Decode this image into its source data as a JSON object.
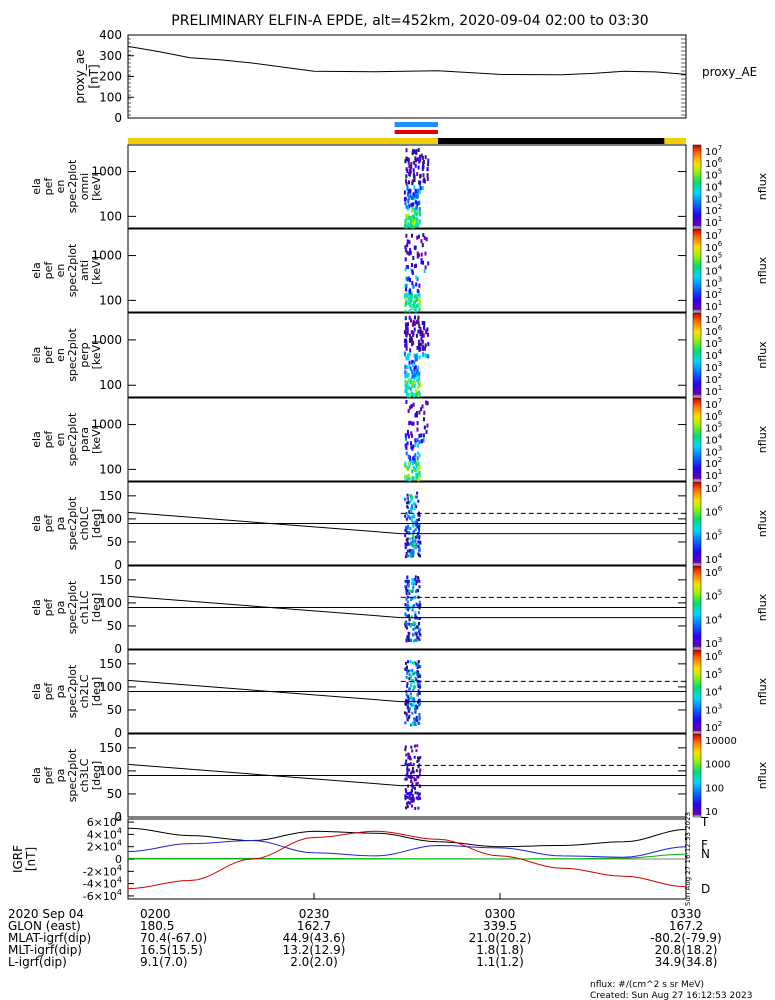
{
  "title": "PRELIMINARY ELFIN-A EPDE, alt=452km, 2020-09-04 02:00 to 03:30",
  "chart_data": [
    {
      "type": "line",
      "name": "proxy_ae",
      "ylabel": "proxy_ae [nT]",
      "yticks": [
        "400",
        "300",
        "200",
        "100",
        "0"
      ],
      "ylim": [
        0,
        400
      ],
      "legend": "proxy_AE",
      "x_minutes": [
        0,
        5,
        10,
        15,
        20,
        30,
        40,
        50,
        60,
        70,
        75,
        80,
        85,
        90
      ],
      "values": [
        345,
        320,
        290,
        280,
        265,
        225,
        223,
        228,
        210,
        208,
        215,
        225,
        222,
        210
      ]
    },
    {
      "type": "heatmap",
      "name": "ela_pef_en_spec2plot_omni",
      "ylabel_lines": [
        "ela",
        "pef",
        "en",
        "spec2plot",
        "omni",
        "[keV]"
      ],
      "yticks": [
        "1000",
        "100"
      ],
      "colorbar_ticks": [
        "10^7",
        "10^6",
        "10^5",
        "10^4",
        "10^3",
        "10^2",
        "10^1"
      ],
      "colorbar_label": "nflux"
    },
    {
      "type": "heatmap",
      "name": "ela_pef_en_spec2plot_anti",
      "ylabel_lines": [
        "ela",
        "pef",
        "en",
        "spec2plot",
        "anti",
        "[keV]"
      ],
      "yticks": [
        "1000",
        "100"
      ],
      "colorbar_ticks": [
        "10^7",
        "10^6",
        "10^5",
        "10^4",
        "10^3",
        "10^2",
        "10^1"
      ],
      "colorbar_label": "nflux"
    },
    {
      "type": "heatmap",
      "name": "ela_pef_en_spec2plot_perp",
      "ylabel_lines": [
        "ela",
        "pef",
        "en",
        "spec2plot",
        "perp",
        "[keV]"
      ],
      "yticks": [
        "1000",
        "100"
      ],
      "colorbar_ticks": [
        "10^7",
        "10^6",
        "10^5",
        "10^4",
        "10^3",
        "10^2",
        "10^1"
      ],
      "colorbar_label": "nflux"
    },
    {
      "type": "heatmap",
      "name": "ela_pef_en_spec2plot_para",
      "ylabel_lines": [
        "ela",
        "pef",
        "en",
        "spec2plot",
        "para",
        "[keV]"
      ],
      "yticks": [
        "1000",
        "100"
      ],
      "colorbar_ticks": [
        "10^7",
        "10^6",
        "10^5",
        "10^4",
        "10^3",
        "10^2",
        "10^1"
      ],
      "colorbar_label": "nflux"
    },
    {
      "type": "heatmap",
      "name": "ela_pef_pa_spec2plot_ch0LC",
      "ylabel_lines": [
        "ela",
        "pef",
        "pa",
        "spec2plot",
        "ch0LC",
        "[deg]"
      ],
      "yticks": [
        "150",
        "100",
        "50",
        "0"
      ],
      "ylim": [
        0,
        180
      ],
      "colorbar_ticks": [
        "10^7",
        "10^6",
        "10^5",
        "10^4"
      ],
      "colorbar_label": "nflux"
    },
    {
      "type": "heatmap",
      "name": "ela_pef_pa_spec2plot_ch1LC",
      "ylabel_lines": [
        "ela",
        "pef",
        "pa",
        "spec2plot",
        "ch1LC",
        "[deg]"
      ],
      "yticks": [
        "150",
        "100",
        "50",
        "0"
      ],
      "ylim": [
        0,
        180
      ],
      "colorbar_ticks": [
        "10^6",
        "10^5",
        "10^4",
        "10^3"
      ],
      "colorbar_label": "nflux"
    },
    {
      "type": "heatmap",
      "name": "ela_pef_pa_spec2plot_ch2LC",
      "ylabel_lines": [
        "ela",
        "pef",
        "pa",
        "spec2plot",
        "ch2LC",
        "[deg]"
      ],
      "yticks": [
        "150",
        "100",
        "50",
        "0"
      ],
      "ylim": [
        0,
        180
      ],
      "colorbar_ticks": [
        "10^6",
        "10^5",
        "10^4",
        "10^3",
        "10^2"
      ],
      "colorbar_label": "nflux"
    },
    {
      "type": "heatmap",
      "name": "ela_pef_pa_spec2plot_ch3LC",
      "ylabel_lines": [
        "ela",
        "pef",
        "pa",
        "spec2plot",
        "ch3LC",
        "[deg]"
      ],
      "yticks": [
        "150",
        "100",
        "50",
        "0"
      ],
      "ylim": [
        0,
        180
      ],
      "colorbar_ticks": [
        "10000",
        "1000",
        "100",
        "10"
      ],
      "colorbar_label": "nflux"
    },
    {
      "type": "line",
      "name": "IGRF",
      "ylabel_lines": [
        "IGRF",
        "[nT]"
      ],
      "yticks": [
        "6×10^4",
        "4×10^4",
        "2×10^4",
        "0",
        "-2×10^4",
        "-4×10^4",
        "-6×10^4"
      ],
      "ylim": [
        -65000,
        65000
      ],
      "x_minutes": [
        0,
        10,
        20,
        30,
        40,
        50,
        60,
        70,
        80,
        90
      ],
      "series": [
        {
          "name": "T",
          "color": "#000000",
          "values": [
            50000,
            38000,
            30000,
            45000,
            42000,
            28000,
            20000,
            22000,
            28000,
            48000
          ]
        },
        {
          "name": "F",
          "color": "#00b000",
          "values": [
            1000,
            1000,
            900,
            800,
            600,
            300,
            200,
            300,
            1500,
            8000
          ]
        },
        {
          "name": "N",
          "color": "#2020d0",
          "values": [
            12000,
            25000,
            30000,
            10000,
            5000,
            22000,
            18000,
            5000,
            3000,
            20000
          ]
        },
        {
          "name": "D",
          "color": "#d00000",
          "values": [
            -48000,
            -35000,
            0,
            35000,
            45000,
            32000,
            5000,
            -15000,
            -28000,
            -45000
          ]
        }
      ]
    }
  ],
  "x_axis": {
    "ticks": [
      "0200",
      "0230",
      "0300",
      "0330"
    ],
    "rows": [
      {
        "label": "2020 Sep 04",
        "values": [
          "0200",
          "0230",
          "0300",
          "0330"
        ]
      },
      {
        "label": "GLON (east)",
        "values": [
          "180.5",
          "162.7",
          "339.5",
          "167.2"
        ]
      },
      {
        "label": "MLAT-igrf(dip)",
        "values": [
          "70.4(-67.0)",
          "44.9(43.6)",
          "21.0(20.2)",
          "-80.2(-79.9)"
        ]
      },
      {
        "label": "MLT-igrf(dip)",
        "values": [
          "16.5(15.5)",
          "13.2(12.9)",
          "1.8(1.8)",
          "20.8(18.2)"
        ]
      },
      {
        "label": "L-igrf(dip)",
        "values": [
          "9.1(7.0)",
          "2.0(2.0)",
          "1.1(1.2)",
          "34.9(34.8)"
        ]
      }
    ]
  },
  "footer": {
    "nflux_units": "nflux: #/(cm^2 s sr MeV)",
    "created": "Created: Sun Aug 27 16:12:53 2023",
    "stamp": "Sun Aug 27 16:12:53 2023"
  },
  "status_bar": {
    "colors": {
      "yellow": "#f0d000",
      "black": "#000000",
      "blue": "#1e90ff",
      "red": "#e00000"
    }
  }
}
